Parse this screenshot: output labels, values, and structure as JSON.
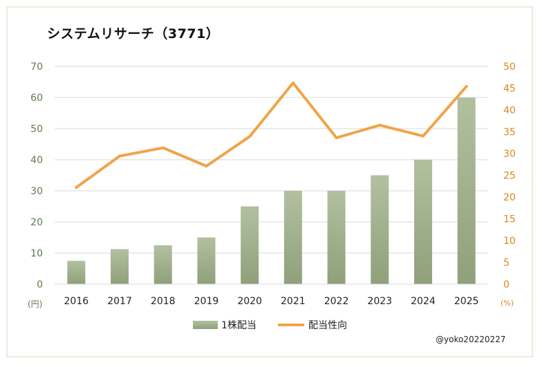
{
  "chart_data": {
    "type": "bar",
    "title": "システムリサーチ（3771）",
    "categories": [
      "2016",
      "2017",
      "2018",
      "2019",
      "2020",
      "2021",
      "2022",
      "2023",
      "2024",
      "2025"
    ],
    "series": [
      {
        "name": "1株配当",
        "type": "bar",
        "axis": "left",
        "values": [
          7.5,
          11.25,
          12.5,
          15,
          25,
          30,
          30,
          35,
          40,
          60
        ]
      },
      {
        "name": "配当性向",
        "type": "line",
        "axis": "right",
        "values": [
          22.2,
          29.4,
          31.3,
          27.1,
          33.9,
          46.2,
          33.6,
          36.5,
          34.0,
          45.4
        ]
      }
    ],
    "y_left": {
      "label": "(円)",
      "min": 0,
      "max": 70,
      "step": 10
    },
    "y_right": {
      "label": "(%)",
      "min": 0,
      "max": 50,
      "step": 5
    },
    "grid": true,
    "legend_position": "bottom",
    "colors": {
      "bar_top": "#b2c0a0",
      "bar_bottom": "#8fa07a",
      "line": "#f0a448",
      "left_axis": "#5f7a4f",
      "right_axis": "#d9891b",
      "grid": "#d9d9d9"
    }
  },
  "watermark": "@yoko20220227"
}
